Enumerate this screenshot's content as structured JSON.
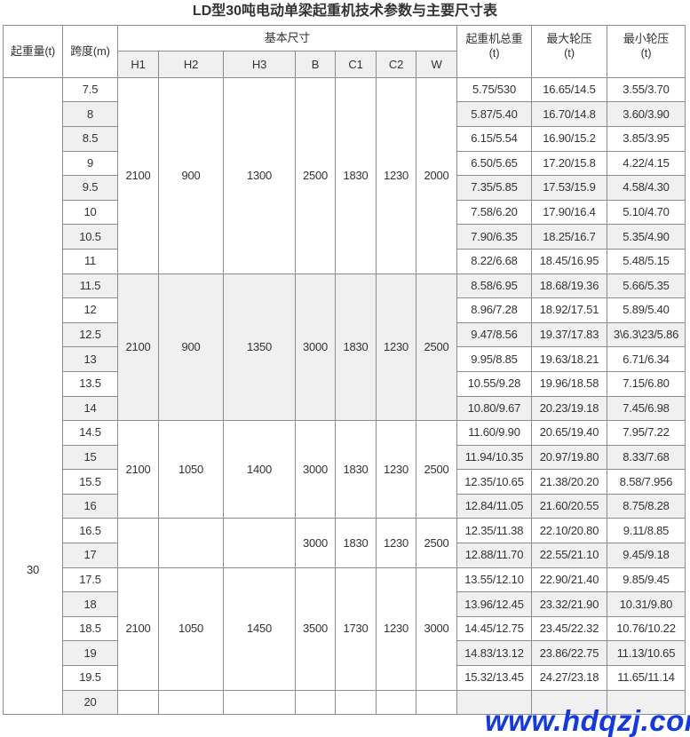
{
  "title": "LD型30吨电动单梁起重机技术参数与主要尺寸表",
  "headers": {
    "capacity": "起重量(t)",
    "span": "跨度(m)",
    "basic_dims": "基本尺寸",
    "dims": [
      "H1",
      "H2",
      "H3",
      "B",
      "C1",
      "C2",
      "W"
    ],
    "total_weight": "起重机总重",
    "total_weight_unit": "(t)",
    "max_wheel": "最大轮压",
    "max_wheel_unit": "(t)",
    "min_wheel": "最小轮压",
    "min_wheel_unit": "(t)"
  },
  "capacity": "30",
  "groups": [
    {
      "dims": [
        "2100",
        "900",
        "1300",
        "2500",
        "1830",
        "1230",
        "2000"
      ],
      "rows": [
        {
          "span": "7.5",
          "weight": "5.75/530",
          "max": "16.65/14.5",
          "min": "3.55/3.70"
        },
        {
          "span": "8",
          "weight": "5.87/5.40",
          "max": "16.70/14.8",
          "min": "3.60/3.90"
        },
        {
          "span": "8.5",
          "weight": "6.15/5.54",
          "max": "16.90/15.2",
          "min": "3.85/3.95"
        },
        {
          "span": "9",
          "weight": "6.50/5.65",
          "max": "17.20/15.8",
          "min": "4.22/4.15"
        },
        {
          "span": "9.5",
          "weight": "7.35/5.85",
          "max": "17.53/15.9",
          "min": "4.58/4.30"
        },
        {
          "span": "10",
          "weight": "7.58/6.20",
          "max": "17.90/16.4",
          "min": "5.10/4.70"
        },
        {
          "span": "10.5",
          "weight": "7.90/6.35",
          "max": "18.25/16.7",
          "min": "5.35/4.90"
        },
        {
          "span": "11",
          "weight": "8.22/6.68",
          "max": "18.45/16.95",
          "min": "5.48/5.15"
        }
      ]
    },
    {
      "dims": [
        "2100",
        "900",
        "1350",
        "3000",
        "1830",
        "1230",
        "2500"
      ],
      "rows": [
        {
          "span": "11.5",
          "weight": "8.58/6.95",
          "max": "18.68/19.36",
          "min": "5.66/5.35"
        },
        {
          "span": "12",
          "weight": "8.96/7.28",
          "max": "18.92/17.51",
          "min": "5.89/5.40"
        },
        {
          "span": "12.5",
          "weight": "9.47/8.56",
          "max": "19.37/17.83",
          "min": "3\\6.3\\23/5.86"
        },
        {
          "span": "13",
          "weight": "9.95/8.85",
          "max": "19.63/18.21",
          "min": "6.71/6.34"
        },
        {
          "span": "13.5",
          "weight": "10.55/9.28",
          "max": "19.96/18.58",
          "min": "7.15/6.80"
        },
        {
          "span": "14",
          "weight": "10.80/9.67",
          "max": "20.23/19.18",
          "min": "7.45/6.98"
        }
      ]
    },
    {
      "dims": [
        "2100",
        "1050",
        "1400",
        "3000",
        "1830",
        "1230",
        "2500"
      ],
      "rows": [
        {
          "span": "14.5",
          "weight": "11.60/9.90",
          "max": "20.65/19.40",
          "min": "7.95/7.22"
        },
        {
          "span": "15",
          "weight": "11.94/10.35",
          "max": "20.97/19.80",
          "min": "8.33/7.68"
        },
        {
          "span": "15.5",
          "weight": "12.35/10.65",
          "max": "21.38/20.20",
          "min": "8.58/7.956"
        },
        {
          "span": "16",
          "weight": "12.84/11.05",
          "max": "21.60/20.55",
          "min": "8.75/8.28"
        }
      ]
    },
    {
      "dims": [
        "",
        "",
        "",
        "3000",
        "1830",
        "1230",
        "2500"
      ],
      "rows": [
        {
          "span": "16.5",
          "weight": "12.35/11.38",
          "max": "22.10/20.80",
          "min": "9.11/8.85"
        },
        {
          "span": "17",
          "weight": "12.88/11.70",
          "max": "22.55/21.10",
          "min": "9.45/9.18"
        }
      ]
    },
    {
      "dims": [
        "2100",
        "1050",
        "1450",
        "3500",
        "1730",
        "1230",
        "3000"
      ],
      "rows": [
        {
          "span": "17.5",
          "weight": "13.55/12.10",
          "max": "22.90/21.40",
          "min": "9.85/9.45"
        },
        {
          "span": "18",
          "weight": "13.96/12.45",
          "max": "23.32/21.90",
          "min": "10.31/9.80"
        },
        {
          "span": "18.5",
          "weight": "14.45/12.75",
          "max": "23.45/22.32",
          "min": "10.76/10.22"
        },
        {
          "span": "19",
          "weight": "14.83/13.12",
          "max": "23.86/22.75",
          "min": "11.13/10.65"
        },
        {
          "span": "19.5",
          "weight": "15.32/13.45",
          "max": "24.27/23.18",
          "min": "11.65/11.14"
        }
      ]
    },
    {
      "dims": [
        "",
        "",
        "",
        "",
        "",
        "",
        ""
      ],
      "rows": [
        {
          "span": "20",
          "weight": "",
          "max": "",
          "min": ""
        }
      ]
    }
  ],
  "watermark": "www.hdqzj.com"
}
